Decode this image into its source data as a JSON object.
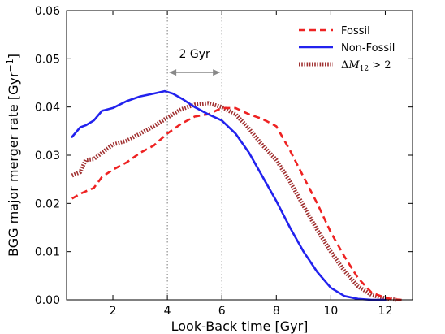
{
  "chart_data": {
    "type": "line",
    "xlabel": "Look-Back time [Gyr]",
    "ylabel": "BGG major merger rate [Gyr",
    "ylabel_unit_exp": "−1",
    "ylabel_close": "]",
    "xlim": [
      0.3,
      13
    ],
    "ylim": [
      0.0,
      0.06
    ],
    "xticks": [
      2,
      4,
      6,
      8,
      10,
      12
    ],
    "xtick_labels": [
      "2",
      "4",
      "6",
      "8",
      "10",
      "12"
    ],
    "yticks": [
      0.0,
      0.01,
      0.02,
      0.03,
      0.04,
      0.05,
      0.06
    ],
    "ytick_labels": [
      "0.00",
      "0.01",
      "0.02",
      "0.03",
      "0.04",
      "0.05",
      "0.06"
    ],
    "legend_position": "top-right",
    "vlines": [
      4,
      6
    ],
    "annotation": {
      "text": "2 Gyr",
      "from": 4,
      "to": 6,
      "y": 0.0475
    },
    "series": [
      {
        "name": "Fossil",
        "color": "#ee2222",
        "style": "dashed",
        "x": [
          0.5,
          0.8,
          1.0,
          1.3,
          1.6,
          2.0,
          2.5,
          3.0,
          3.5,
          4.0,
          4.5,
          5.0,
          5.5,
          6.0,
          6.5,
          7.0,
          7.5,
          8.0,
          8.5,
          9.0,
          9.5,
          10.0,
          10.5,
          11.0,
          11.5,
          12.0,
          12.3,
          12.6
        ],
        "y": [
          0.021,
          0.022,
          0.0225,
          0.0232,
          0.0255,
          0.027,
          0.0285,
          0.0305,
          0.032,
          0.0345,
          0.0365,
          0.038,
          0.0385,
          0.0398,
          0.0398,
          0.0385,
          0.0375,
          0.036,
          0.031,
          0.0255,
          0.02,
          0.014,
          0.009,
          0.0045,
          0.0015,
          0.0004,
          0.0001,
          0.0
        ]
      },
      {
        "name": "Non-Fossil",
        "color": "#2222ee",
        "style": "solid",
        "x": [
          0.5,
          0.8,
          1.0,
          1.3,
          1.6,
          2.0,
          2.5,
          3.0,
          3.5,
          3.9,
          4.2,
          4.6,
          5.0,
          5.5,
          6.0,
          6.5,
          7.0,
          7.5,
          8.0,
          8.5,
          9.0,
          9.5,
          10.0,
          10.5,
          11.0,
          11.5,
          12.0
        ],
        "y": [
          0.0338,
          0.0358,
          0.0362,
          0.0372,
          0.0392,
          0.0398,
          0.0412,
          0.0422,
          0.0428,
          0.0433,
          0.0428,
          0.0415,
          0.04,
          0.0385,
          0.0372,
          0.0345,
          0.0305,
          0.0255,
          0.0205,
          0.015,
          0.01,
          0.0058,
          0.0025,
          0.0008,
          0.0002,
          0.0,
          0.0
        ]
      },
      {
        "name": "ΔM12 > 2",
        "name_parts": {
          "delta": "Δ",
          "m": "M",
          "sub": "12",
          "rest": " > 2"
        },
        "color": "#a03030",
        "style": "dotted-thick",
        "x": [
          0.5,
          0.8,
          1.0,
          1.3,
          1.6,
          2.0,
          2.5,
          3.0,
          3.5,
          4.0,
          4.5,
          5.0,
          5.5,
          6.0,
          6.5,
          7.0,
          7.5,
          8.0,
          8.5,
          9.0,
          9.5,
          10.0,
          10.5,
          11.0,
          11.5,
          12.0,
          12.4
        ],
        "y": [
          0.0258,
          0.0265,
          0.029,
          0.0292,
          0.0305,
          0.0322,
          0.033,
          0.0345,
          0.036,
          0.0378,
          0.0395,
          0.0405,
          0.0408,
          0.04,
          0.0385,
          0.0355,
          0.032,
          0.029,
          0.0245,
          0.0195,
          0.0145,
          0.01,
          0.006,
          0.0028,
          0.001,
          0.0003,
          0.0
        ]
      }
    ]
  }
}
